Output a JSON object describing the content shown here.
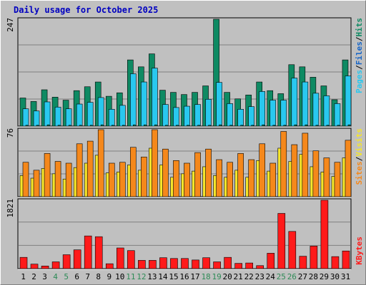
{
  "title": "Daily usage for October 2025",
  "colors": {
    "pages": "#0e8a63",
    "files": "#29c8ef",
    "hits": "#0e8a63",
    "sites": "#f5881b",
    "visits": "#f5e52b",
    "kbytes": "#ff1a1a",
    "weekend": "#2e8b57",
    "weekday": "#000000",
    "plot_bg": "#c0c0c0",
    "title": "#0000c0"
  },
  "chart_data": [
    {
      "type": "bar",
      "panel": "hits-files-pages",
      "title": "Daily usage for October 2025",
      "categories": [
        "1",
        "2",
        "3",
        "4",
        "5",
        "6",
        "7",
        "8",
        "9",
        "10",
        "11",
        "12",
        "13",
        "14",
        "15",
        "16",
        "17",
        "18",
        "19",
        "20",
        "21",
        "22",
        "23",
        "24",
        "25",
        "26",
        "27",
        "28",
        "29",
        "30",
        "31"
      ],
      "weekend_days": [
        "4",
        "5",
        "11",
        "12",
        "18",
        "19",
        "25",
        "26"
      ],
      "max_label": "247",
      "ylim": [
        0,
        247
      ],
      "legend_text": {
        "pages": "Pages",
        "files": "Files",
        "hits": "Hits",
        "sep": "/"
      },
      "series": [
        {
          "name": "Hits",
          "values": [
            65,
            57,
            84,
            67,
            60,
            82,
            91,
            102,
            69,
            77,
            153,
            137,
            167,
            83,
            78,
            73,
            78,
            93,
            247,
            78,
            63,
            72,
            102,
            82,
            75,
            142,
            137,
            113,
            93,
            61,
            153
          ]
        },
        {
          "name": "Files",
          "values": [
            40,
            35,
            56,
            44,
            40,
            51,
            55,
            66,
            39,
            48,
            121,
            102,
            134,
            50,
            43,
            46,
            50,
            62,
            101,
            52,
            39,
            45,
            80,
            60,
            60,
            111,
            102,
            76,
            70,
            52,
            116
          ]
        },
        {
          "name": "Pages",
          "values": [
            2,
            2,
            3,
            2,
            2,
            2,
            2,
            3,
            2,
            2,
            3,
            3,
            3,
            2,
            2,
            2,
            2,
            2,
            3,
            2,
            2,
            2,
            3,
            2,
            2,
            3,
            3,
            2,
            2,
            2,
            3
          ]
        }
      ]
    },
    {
      "type": "bar",
      "panel": "visits-sites",
      "categories": [
        "1",
        "2",
        "3",
        "4",
        "5",
        "6",
        "7",
        "8",
        "9",
        "10",
        "11",
        "12",
        "13",
        "14",
        "15",
        "16",
        "17",
        "18",
        "19",
        "20",
        "21",
        "22",
        "23",
        "24",
        "25",
        "26",
        "27",
        "28",
        "29",
        "30",
        "31"
      ],
      "max_label": "76",
      "ylim": [
        0,
        76
      ],
      "legend_text": {
        "sites": "Sites",
        "visits": "Visits",
        "sep": "/"
      },
      "series": [
        {
          "name": "Sites",
          "values": [
            39,
            30,
            49,
            40,
            38,
            60,
            63,
            76,
            38,
            39,
            56,
            45,
            76,
            54,
            41,
            38,
            50,
            54,
            42,
            39,
            49,
            42,
            60,
            38,
            74,
            59,
            72,
            52,
            44,
            39,
            64
          ]
        },
        {
          "name": "Visits",
          "values": [
            24,
            21,
            32,
            26,
            20,
            33,
            38,
            47,
            27,
            28,
            36,
            30,
            55,
            36,
            22,
            26,
            29,
            34,
            24,
            22,
            30,
            22,
            41,
            29,
            55,
            40,
            48,
            34,
            28,
            23,
            44
          ]
        }
      ]
    },
    {
      "type": "bar",
      "panel": "kbytes",
      "categories": [
        "1",
        "2",
        "3",
        "4",
        "5",
        "6",
        "7",
        "8",
        "9",
        "10",
        "11",
        "12",
        "13",
        "14",
        "15",
        "16",
        "17",
        "18",
        "19",
        "20",
        "21",
        "22",
        "23",
        "24",
        "25",
        "26",
        "27",
        "28",
        "29",
        "30",
        "31"
      ],
      "max_label": "1821",
      "ylim": [
        0,
        1821
      ],
      "legend_text": {
        "kbytes": "KBytes"
      },
      "series": [
        {
          "name": "KBytes",
          "values": [
            300,
            120,
            70,
            180,
            370,
            500,
            870,
            850,
            130,
            550,
            480,
            220,
            220,
            290,
            270,
            270,
            230,
            290,
            180,
            300,
            140,
            150,
            80,
            410,
            1470,
            990,
            330,
            600,
            1821,
            320,
            470
          ]
        }
      ]
    }
  ]
}
